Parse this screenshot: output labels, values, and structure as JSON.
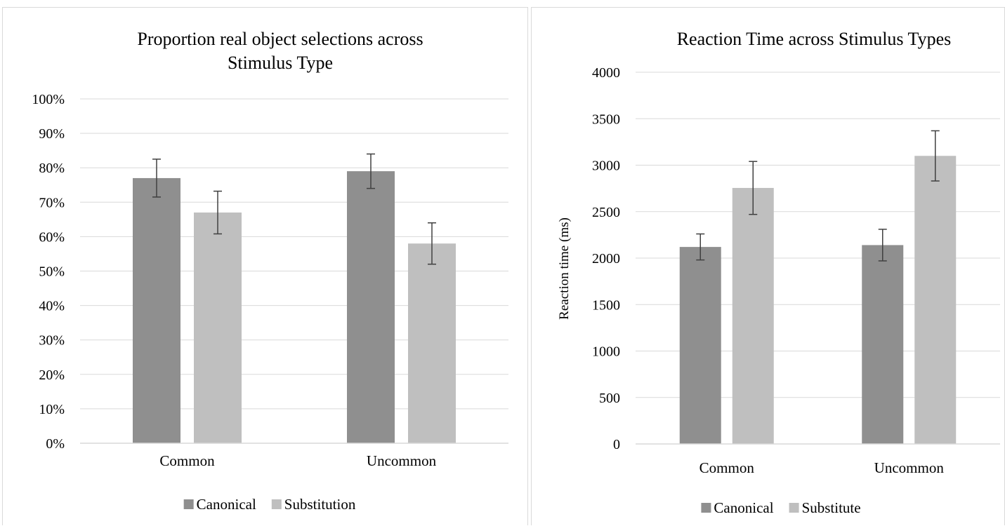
{
  "colors": {
    "canonical": "#8f8f8f",
    "substitution": "#bfbfbf",
    "grid": "#d9d9d9",
    "error_bar": "#404040"
  },
  "chart_data": [
    {
      "type": "bar",
      "title_lines": [
        "Proportion real object selections across",
        "Stimulus Type"
      ],
      "xlabel": "",
      "ylabel": "",
      "ylim": [
        0,
        100
      ],
      "y_ticks": [
        "0%",
        "10%",
        "20%",
        "30%",
        "40%",
        "50%",
        "60%",
        "70%",
        "80%",
        "90%",
        "100%"
      ],
      "categories": [
        "Common",
        "Uncommon"
      ],
      "series": [
        {
          "name": "Canonical",
          "color": "#8f8f8f",
          "values": [
            77,
            79
          ],
          "error": [
            5.5,
            5
          ]
        },
        {
          "name": "Substitution",
          "color": "#bfbfbf",
          "values": [
            67,
            58
          ],
          "error": [
            6.2,
            6
          ]
        }
      ],
      "grid": true,
      "legend": "bottom"
    },
    {
      "type": "bar",
      "title_lines": [
        "Reaction Time across Stimulus Types"
      ],
      "xlabel": "",
      "ylabel": "Reaction time (ms)",
      "ylim": [
        0,
        4000
      ],
      "y_ticks": [
        "0",
        "500",
        "1000",
        "1500",
        "2000",
        "2500",
        "3000",
        "3500",
        "4000"
      ],
      "categories": [
        "Common",
        "Uncommon"
      ],
      "series": [
        {
          "name": "Canonical",
          "color": "#8f8f8f",
          "values": [
            2120,
            2140
          ],
          "error": [
            140,
            170
          ]
        },
        {
          "name": "Substitute",
          "color": "#bfbfbf",
          "values": [
            2755,
            3100
          ],
          "error": [
            285,
            270
          ]
        }
      ],
      "grid": true,
      "legend": "bottom"
    }
  ]
}
